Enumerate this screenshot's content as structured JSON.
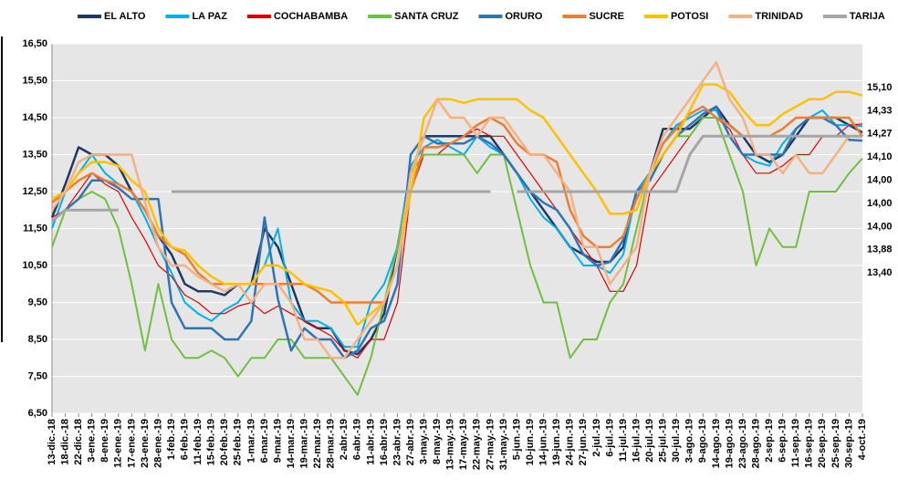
{
  "chart_data": {
    "type": "line",
    "categories": [
      "13-dic.-18",
      "18-dic.-18",
      "22-dic.-18",
      "3-ene.-19",
      "8-ene.-19",
      "12-ene.-19",
      "17-ene.-19",
      "23-ene.-19",
      "28-ene.-19",
      "1-feb.-19",
      "6-feb.-19",
      "11-feb.-19",
      "15-feb.-19",
      "20-feb.-19",
      "25-feb.-19",
      "1-mar.-19",
      "6-mar.-19",
      "9-mar.-19",
      "14-mar.-19",
      "19-mar.-19",
      "22-mar.-19",
      "28-mar.-19",
      "2-abr.-19",
      "6-abr.-19",
      "11-abr.-19",
      "16-abr.-19",
      "23-abr.-19",
      "27-abr.-19",
      "3-may.-19",
      "8-may.-19",
      "13-may.-19",
      "17-may.-19",
      "22-may.-19",
      "27-may.-19",
      "31-may.-19",
      "5-jun.-19",
      "10-jun.-19",
      "14-jun.-19",
      "19-jun.-19",
      "24-jun.-19",
      "27-jun.-19",
      "2-jul.-19",
      "6-jul.-19",
      "11-jul.-19",
      "16-jul.-19",
      "20-jul.-19",
      "25-jul.-19",
      "30-jul.-19",
      "3-ago.-19",
      "9-ago.-19",
      "14-ago.-19",
      "19-ago.-19",
      "23-ago.-19",
      "28-ago.-19",
      "2-sep.-19",
      "6-sep.-19",
      "11-sep.-19",
      "16-sep.-19",
      "20-sep.-19",
      "25-sep.-19",
      "30-sep.-19",
      "4-oct.-19"
    ],
    "ylim": [
      6.5,
      16.5
    ],
    "yticks": [
      {
        "value": 6.5,
        "label": "6,50"
      },
      {
        "value": 7.5,
        "label": "7,50"
      },
      {
        "value": 8.5,
        "label": "8,50"
      },
      {
        "value": 9.5,
        "label": "9,50"
      },
      {
        "value": 10.5,
        "label": "10,50"
      },
      {
        "value": 11.5,
        "label": "11,50"
      },
      {
        "value": 12.5,
        "label": "12,50"
      },
      {
        "value": 13.5,
        "label": "13,50"
      },
      {
        "value": 14.5,
        "label": "14,50"
      },
      {
        "value": 15.5,
        "label": "15,50"
      },
      {
        "value": 16.5,
        "label": "16,50"
      }
    ],
    "grid": true,
    "legend": "top",
    "series": [
      {
        "name": "EL ALTO",
        "color": "#1f3864",
        "width": 2.5,
        "last_label": "14,10",
        "values": [
          11.8,
          12.7,
          13.7,
          13.5,
          13.5,
          13.2,
          12.5,
          12,
          11.3,
          10.8,
          10,
          9.8,
          9.8,
          9.7,
          10,
          10,
          11.5,
          11,
          10,
          9,
          8.8,
          8.8,
          8.2,
          8.1,
          8.5,
          9.2,
          11,
          13,
          14,
          14,
          14,
          14,
          14,
          14,
          13.5,
          13,
          12.5,
          12,
          11.5,
          11,
          10.8,
          10.6,
          10.6,
          11,
          12.5,
          13,
          14.2,
          14.2,
          14.2,
          14.5,
          14.8,
          14.3,
          14,
          13.5,
          13.3,
          13.5,
          14,
          14.5,
          14.5,
          14.5,
          14.3,
          14.1
        ]
      },
      {
        "name": "LA PAZ",
        "color": "#00b0f0",
        "width": 2,
        "last_label": "14,27",
        "values": [
          11.5,
          12.5,
          13,
          13.5,
          13,
          12.7,
          12.5,
          11.8,
          11,
          10.3,
          9.5,
          9.2,
          9,
          9.3,
          9.5,
          10,
          10.5,
          11.5,
          9.5,
          9,
          9,
          8.8,
          8.3,
          8.3,
          9.5,
          10,
          11,
          13.2,
          13.7,
          13.9,
          13.7,
          13.5,
          14,
          13.7,
          13.5,
          13,
          12.3,
          11.8,
          11.5,
          11,
          10.5,
          10.5,
          10.3,
          10.8,
          12.5,
          13,
          13.8,
          14.3,
          14.5,
          14.7,
          14.7,
          14,
          13.5,
          13.3,
          13.2,
          13.8,
          14.2,
          14.5,
          14.7,
          14.3,
          14.3,
          14.27
        ]
      },
      {
        "name": "COCHABAMBA",
        "color": "#e00000",
        "width": 1.2,
        "last_label": "14,33",
        "values": [
          11.8,
          12,
          12.5,
          13,
          12.7,
          12.5,
          11.8,
          11.2,
          10.5,
          10.2,
          9.7,
          9.5,
          9.2,
          9.2,
          9.4,
          9.5,
          9.2,
          9.4,
          9.2,
          9,
          8.8,
          8.6,
          8.2,
          8,
          8.5,
          8.5,
          9.5,
          12.5,
          13.5,
          13.5,
          13.8,
          14,
          14.2,
          14,
          14,
          13.5,
          13,
          12.5,
          12,
          11.5,
          11,
          10.5,
          9.8,
          9.8,
          10.5,
          12.5,
          13,
          13.5,
          14,
          14.5,
          14.5,
          14.2,
          13.5,
          13,
          13,
          13.2,
          13.5,
          13.5,
          14,
          14,
          14.3,
          14.33
        ]
      },
      {
        "name": "SANTA CRUZ",
        "color": "#70c040",
        "width": 2,
        "last_label": "13,40",
        "values": [
          11,
          12,
          12.3,
          12.5,
          12.3,
          11.5,
          10,
          8.2,
          10,
          8.5,
          8,
          8,
          8.2,
          8,
          7.5,
          8,
          8,
          8.5,
          8.5,
          8,
          8,
          8,
          7.5,
          7,
          8,
          9.5,
          11,
          13,
          13.5,
          13.5,
          13.5,
          13.5,
          13,
          13.5,
          13.5,
          12,
          10.5,
          9.5,
          9.5,
          8,
          8.5,
          8.5,
          9.5,
          10,
          11.5,
          13,
          13.5,
          14,
          14,
          14.5,
          14.5,
          13.5,
          12.5,
          10.5,
          11.5,
          11,
          11,
          12.5,
          12.5,
          12.5,
          13,
          13.4
        ]
      },
      {
        "name": "ORURO",
        "color": "#2e75b6",
        "width": 2.5,
        "last_label": "13,88",
        "values": [
          11.7,
          12,
          12.3,
          12.8,
          12.8,
          12.6,
          12.3,
          12.3,
          12.3,
          9.5,
          8.8,
          8.8,
          8.8,
          8.5,
          8.5,
          9,
          11.8,
          9.6,
          8.2,
          8.8,
          8.5,
          8.5,
          8,
          8.2,
          8.8,
          9,
          10,
          13.5,
          14,
          13.8,
          13.8,
          13.8,
          14,
          13.8,
          13.5,
          13,
          12.5,
          12.2,
          12,
          11.5,
          10.8,
          10.5,
          10.6,
          11.2,
          12.5,
          12.8,
          13.5,
          14,
          14.3,
          14.6,
          14.8,
          14,
          13.5,
          13.5,
          13.5,
          13.5,
          14.2,
          14.5,
          14.5,
          14.3,
          13.9,
          13.88
        ]
      },
      {
        "name": "SUCRE",
        "color": "#ed7d31",
        "width": 2.5,
        "last_label": "14,00",
        "values": [
          12.2,
          12.5,
          12.8,
          13,
          12.8,
          12.7,
          12.5,
          12,
          11.3,
          11,
          10.8,
          10.3,
          10,
          10,
          10,
          10,
          10,
          10,
          10,
          10,
          9.8,
          9.5,
          9.5,
          9.5,
          9.5,
          9.5,
          10.5,
          12.5,
          13.7,
          13.7,
          13.8,
          14,
          14.3,
          14.5,
          14.3,
          13.8,
          13.5,
          13.5,
          13.3,
          12,
          11.3,
          11,
          11,
          11.3,
          12.3,
          13,
          13.8,
          14.2,
          14.6,
          14.8,
          14.5,
          14.3,
          14,
          14,
          14,
          14.2,
          14.5,
          14.5,
          14.5,
          14.5,
          14.5,
          14
        ]
      },
      {
        "name": "POTOSI",
        "color": "#ffc000",
        "width": 2.5,
        "last_label": "15,10",
        "values": [
          12.3,
          12.5,
          13,
          13.3,
          13.3,
          13.2,
          12.8,
          12.5,
          11.5,
          11,
          10.9,
          10.5,
          10.2,
          10,
          10,
          10,
          10.5,
          10.5,
          10.3,
          10,
          9.9,
          9.8,
          9.5,
          8.9,
          9.2,
          9.5,
          10.5,
          12.5,
          14.5,
          15,
          15,
          14.9,
          15,
          15,
          15,
          15,
          14.7,
          14.5,
          14,
          13.5,
          13,
          12.5,
          11.9,
          11.9,
          12,
          13,
          13.5,
          14,
          14.7,
          15.4,
          15.4,
          15.2,
          14.7,
          14.3,
          14.3,
          14.6,
          14.8,
          15,
          15,
          15.2,
          15.2,
          15.1
        ]
      },
      {
        "name": "TRINIDAD",
        "color": "#f4b183",
        "width": 2.5,
        "last_label": "14,00",
        "values": [
          12,
          12.5,
          13.3,
          13.5,
          13.5,
          13.5,
          13.5,
          12.2,
          11,
          10.5,
          10.5,
          10.2,
          10,
          9.8,
          10,
          9.5,
          10,
          10,
          9.5,
          8.5,
          8.5,
          8,
          8,
          8.5,
          9,
          9.5,
          10.5,
          13,
          14,
          15,
          14.5,
          14.5,
          14,
          14.5,
          14.5,
          14,
          13.5,
          13.5,
          13,
          12.5,
          11,
          11,
          10,
          10.5,
          11,
          13,
          14,
          14.5,
          15,
          15.5,
          16,
          15,
          14.5,
          13.5,
          13.5,
          13,
          13.5,
          13,
          13,
          13.5,
          14,
          14
        ]
      },
      {
        "name": "TARIJA",
        "color": "#a5a5a5",
        "width": 3,
        "last_label": "14,00",
        "values": [
          11.7,
          12,
          12,
          12,
          12,
          12,
          null,
          null,
          null,
          12.5,
          12.5,
          12.5,
          12.5,
          12.5,
          12.5,
          12.5,
          12.5,
          12.5,
          12.5,
          12.5,
          12.5,
          12.5,
          12.5,
          12.5,
          12.5,
          12.5,
          12.5,
          12.5,
          12.5,
          12.5,
          12.5,
          12.5,
          12.5,
          12.5,
          null,
          12.5,
          12.5,
          12.5,
          12.5,
          12.5,
          12.5,
          12.5,
          12.5,
          12.5,
          12.5,
          12.5,
          12.5,
          12.5,
          13.5,
          14,
          14,
          14,
          14,
          14,
          14,
          14,
          14,
          14,
          14,
          14,
          14,
          14
        ]
      }
    ]
  }
}
